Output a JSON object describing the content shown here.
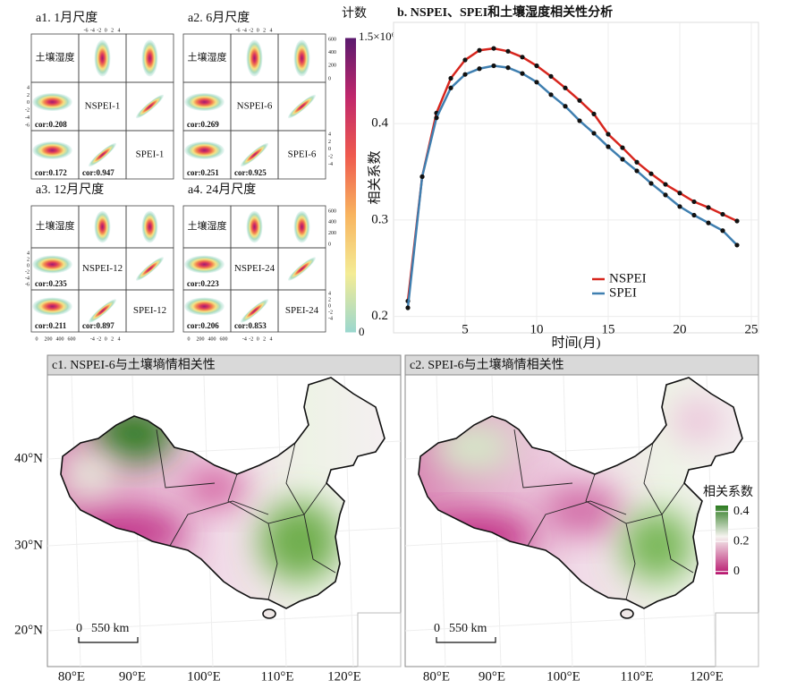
{
  "density_matrices": {
    "panels": [
      {
        "title": "a1. 1月尺度",
        "labels": [
          "土壤湿度",
          "NSPEI-1",
          "SPEI-1"
        ],
        "cor": [
          0.208,
          0.172,
          0.947
        ],
        "cor_labels": [
          "cor:0.208",
          "cor:0.172",
          "cor:0.947"
        ]
      },
      {
        "title": "a2.  6月尺度",
        "labels": [
          "土壤湿度",
          "NSPEI-6",
          "SPEI-6"
        ],
        "cor": [
          0.269,
          0.251,
          0.925
        ],
        "cor_labels": [
          "cor:0.269",
          "cor:0.251",
          "cor:0.925"
        ]
      },
      {
        "title": "a3. 12月尺度",
        "labels": [
          "土壤湿度",
          "NSPEI-12",
          "SPEI-12"
        ],
        "cor": [
          0.235,
          0.211,
          0.897
        ],
        "cor_labels": [
          "cor:0.235",
          "cor:0.211",
          "cor:0.897"
        ]
      },
      {
        "title": "a4. 24月尺度",
        "labels": [
          "土壤湿度",
          "NSPEI-24",
          "SPEI-24"
        ],
        "cor": [
          0.223,
          0.206,
          0.853
        ],
        "cor_labels": [
          "cor:0.223",
          "cor:0.206",
          "cor:0.853"
        ]
      }
    ],
    "index_ticks": [
      -6,
      -4,
      -2,
      0,
      2,
      4
    ],
    "count_ticks": [
      600,
      400,
      200,
      0
    ],
    "soil_ticks": [
      0,
      200,
      400,
      600
    ]
  },
  "density_colorbar": {
    "title": "计数",
    "ticks": [
      {
        "value": 1500000,
        "label": "1.5×10⁶"
      },
      0
    ],
    "lim": [
      0,
      1500000
    ]
  },
  "chart_data": {
    "type": "line",
    "title": "b.  NSPEI、SPEI和土壤湿度相关性分析",
    "xlabel": "时间(月)",
    "ylabel": "相关系数",
    "x": [
      1,
      2,
      3,
      4,
      5,
      6,
      7,
      8,
      9,
      10,
      11,
      12,
      13,
      14,
      15,
      16,
      17,
      18,
      19,
      20,
      21,
      22,
      23,
      24
    ],
    "series": [
      {
        "name": "NSPEI",
        "color": "#d7261e",
        "values": [
          0.216,
          0.345,
          0.411,
          0.447,
          0.466,
          0.476,
          0.478,
          0.475,
          0.469,
          0.46,
          0.449,
          0.437,
          0.424,
          0.41,
          0.389,
          0.375,
          0.36,
          0.348,
          0.337,
          0.328,
          0.319,
          0.313,
          0.306,
          0.299
        ]
      },
      {
        "name": "SPEI",
        "color": "#3f7fb0",
        "values": [
          0.209,
          0.345,
          0.406,
          0.437,
          0.451,
          0.457,
          0.46,
          0.458,
          0.452,
          0.443,
          0.43,
          0.418,
          0.403,
          0.39,
          0.376,
          0.363,
          0.351,
          0.338,
          0.326,
          0.314,
          0.305,
          0.297,
          0.289,
          0.274
        ]
      }
    ],
    "xlim": [
      0,
      25.5
    ],
    "ylim": [
      0.183,
      0.505
    ],
    "xticks": [
      5,
      10,
      15,
      20,
      25
    ],
    "yticks": [
      0.2,
      0.3,
      0.4
    ],
    "grid": true
  },
  "maps": {
    "panels": [
      {
        "title": "c1. NSPEI-6与土壤墒情相关性"
      },
      {
        "title": "c2. SPEI-6与土壤墒情相关性"
      }
    ],
    "lat_labels": [
      "40°N",
      "30°N",
      "20°N"
    ],
    "lon_labels": [
      "80°E",
      "90°E",
      "100°E",
      "110°E",
      "120°E"
    ],
    "scale": {
      "zero": 0,
      "length": {
        "value": 550,
        "label": "550 km"
      }
    },
    "legend": {
      "title": "相关系数",
      "ticks": [
        0.4,
        0.2,
        0
      ],
      "lim": [
        -0.02,
        0.44
      ]
    }
  }
}
